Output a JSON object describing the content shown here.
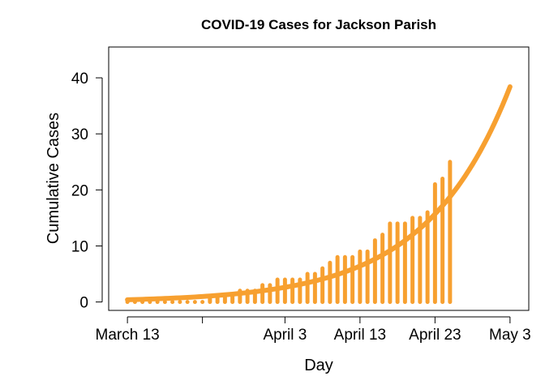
{
  "chart_data": {
    "type": "bar",
    "title": "COVID-19 Cases for Jackson Parish",
    "xlabel": "Day",
    "ylabel": "Cumulative Cases",
    "color": "#F7A030",
    "x_start": "March 13",
    "x_ticks": [
      {
        "day": 0,
        "label": "March 13"
      },
      {
        "day": 10,
        "label": ""
      },
      {
        "day": 21,
        "label": "April 3"
      },
      {
        "day": 31,
        "label": "April 13"
      },
      {
        "day": 41,
        "label": "April 23"
      },
      {
        "day": 51,
        "label": "May 3"
      }
    ],
    "xlim": [
      -2.5,
      53.5
    ],
    "y_ticks": [
      0,
      10,
      20,
      30,
      40
    ],
    "ylim": [
      -1.5,
      45.5
    ],
    "days": [
      0,
      1,
      2,
      3,
      4,
      5,
      6,
      7,
      8,
      9,
      10,
      11,
      12,
      13,
      14,
      15,
      16,
      17,
      18,
      19,
      20,
      21,
      22,
      23,
      24,
      25,
      26,
      27,
      28,
      29,
      30,
      31,
      32,
      33,
      34,
      35,
      36,
      37,
      38,
      39,
      40,
      41,
      42,
      43
    ],
    "values": [
      0,
      0,
      0,
      0,
      0,
      0,
      0,
      0,
      0,
      0,
      0,
      1,
      1,
      1,
      1,
      2,
      2,
      2,
      3,
      3,
      4,
      4,
      4,
      4,
      5,
      5,
      6,
      7,
      8,
      8,
      8,
      9,
      9,
      11,
      12,
      14,
      14,
      14,
      15,
      15,
      16,
      21,
      22,
      25
    ],
    "fit": {
      "a": 0.4,
      "b": 0.0895,
      "x_end": 51
    }
  }
}
